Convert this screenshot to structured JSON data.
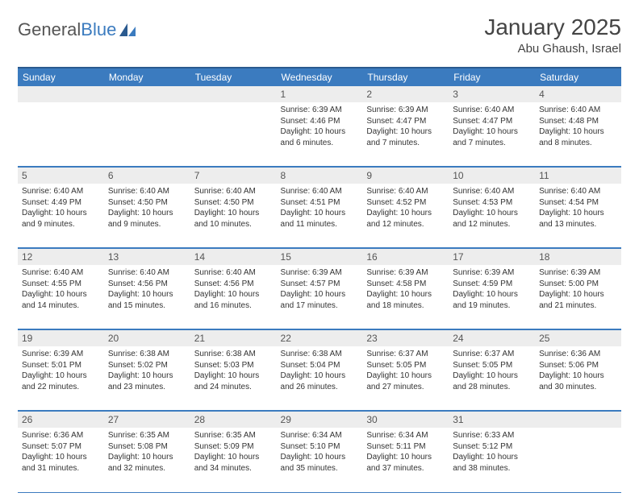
{
  "brand": {
    "part1": "General",
    "part2": "Blue"
  },
  "title": "January 2025",
  "location": "Abu Ghaush, Israel",
  "colors": {
    "header_bg": "#3b7bbf",
    "header_border": "#2a5a8f",
    "daynum_bg": "#ededed",
    "text": "#333333",
    "background": "#ffffff"
  },
  "font": {
    "family": "Arial",
    "title_size": 28,
    "header_size": 12,
    "body_size": 10
  },
  "day_headers": [
    "Sunday",
    "Monday",
    "Tuesday",
    "Wednesday",
    "Thursday",
    "Friday",
    "Saturday"
  ],
  "weeks": [
    [
      null,
      null,
      null,
      {
        "n": "1",
        "sr": "6:39 AM",
        "ss": "4:46 PM",
        "dl": "10 hours and 6 minutes."
      },
      {
        "n": "2",
        "sr": "6:39 AM",
        "ss": "4:47 PM",
        "dl": "10 hours and 7 minutes."
      },
      {
        "n": "3",
        "sr": "6:40 AM",
        "ss": "4:47 PM",
        "dl": "10 hours and 7 minutes."
      },
      {
        "n": "4",
        "sr": "6:40 AM",
        "ss": "4:48 PM",
        "dl": "10 hours and 8 minutes."
      }
    ],
    [
      {
        "n": "5",
        "sr": "6:40 AM",
        "ss": "4:49 PM",
        "dl": "10 hours and 9 minutes."
      },
      {
        "n": "6",
        "sr": "6:40 AM",
        "ss": "4:50 PM",
        "dl": "10 hours and 9 minutes."
      },
      {
        "n": "7",
        "sr": "6:40 AM",
        "ss": "4:50 PM",
        "dl": "10 hours and 10 minutes."
      },
      {
        "n": "8",
        "sr": "6:40 AM",
        "ss": "4:51 PM",
        "dl": "10 hours and 11 minutes."
      },
      {
        "n": "9",
        "sr": "6:40 AM",
        "ss": "4:52 PM",
        "dl": "10 hours and 12 minutes."
      },
      {
        "n": "10",
        "sr": "6:40 AM",
        "ss": "4:53 PM",
        "dl": "10 hours and 12 minutes."
      },
      {
        "n": "11",
        "sr": "6:40 AM",
        "ss": "4:54 PM",
        "dl": "10 hours and 13 minutes."
      }
    ],
    [
      {
        "n": "12",
        "sr": "6:40 AM",
        "ss": "4:55 PM",
        "dl": "10 hours and 14 minutes."
      },
      {
        "n": "13",
        "sr": "6:40 AM",
        "ss": "4:56 PM",
        "dl": "10 hours and 15 minutes."
      },
      {
        "n": "14",
        "sr": "6:40 AM",
        "ss": "4:56 PM",
        "dl": "10 hours and 16 minutes."
      },
      {
        "n": "15",
        "sr": "6:39 AM",
        "ss": "4:57 PM",
        "dl": "10 hours and 17 minutes."
      },
      {
        "n": "16",
        "sr": "6:39 AM",
        "ss": "4:58 PM",
        "dl": "10 hours and 18 minutes."
      },
      {
        "n": "17",
        "sr": "6:39 AM",
        "ss": "4:59 PM",
        "dl": "10 hours and 19 minutes."
      },
      {
        "n": "18",
        "sr": "6:39 AM",
        "ss": "5:00 PM",
        "dl": "10 hours and 21 minutes."
      }
    ],
    [
      {
        "n": "19",
        "sr": "6:39 AM",
        "ss": "5:01 PM",
        "dl": "10 hours and 22 minutes."
      },
      {
        "n": "20",
        "sr": "6:38 AM",
        "ss": "5:02 PM",
        "dl": "10 hours and 23 minutes."
      },
      {
        "n": "21",
        "sr": "6:38 AM",
        "ss": "5:03 PM",
        "dl": "10 hours and 24 minutes."
      },
      {
        "n": "22",
        "sr": "6:38 AM",
        "ss": "5:04 PM",
        "dl": "10 hours and 26 minutes."
      },
      {
        "n": "23",
        "sr": "6:37 AM",
        "ss": "5:05 PM",
        "dl": "10 hours and 27 minutes."
      },
      {
        "n": "24",
        "sr": "6:37 AM",
        "ss": "5:05 PM",
        "dl": "10 hours and 28 minutes."
      },
      {
        "n": "25",
        "sr": "6:36 AM",
        "ss": "5:06 PM",
        "dl": "10 hours and 30 minutes."
      }
    ],
    [
      {
        "n": "26",
        "sr": "6:36 AM",
        "ss": "5:07 PM",
        "dl": "10 hours and 31 minutes."
      },
      {
        "n": "27",
        "sr": "6:35 AM",
        "ss": "5:08 PM",
        "dl": "10 hours and 32 minutes."
      },
      {
        "n": "28",
        "sr": "6:35 AM",
        "ss": "5:09 PM",
        "dl": "10 hours and 34 minutes."
      },
      {
        "n": "29",
        "sr": "6:34 AM",
        "ss": "5:10 PM",
        "dl": "10 hours and 35 minutes."
      },
      {
        "n": "30",
        "sr": "6:34 AM",
        "ss": "5:11 PM",
        "dl": "10 hours and 37 minutes."
      },
      {
        "n": "31",
        "sr": "6:33 AM",
        "ss": "5:12 PM",
        "dl": "10 hours and 38 minutes."
      },
      null
    ]
  ],
  "labels": {
    "sunrise": "Sunrise:",
    "sunset": "Sunset:",
    "daylight": "Daylight:"
  }
}
